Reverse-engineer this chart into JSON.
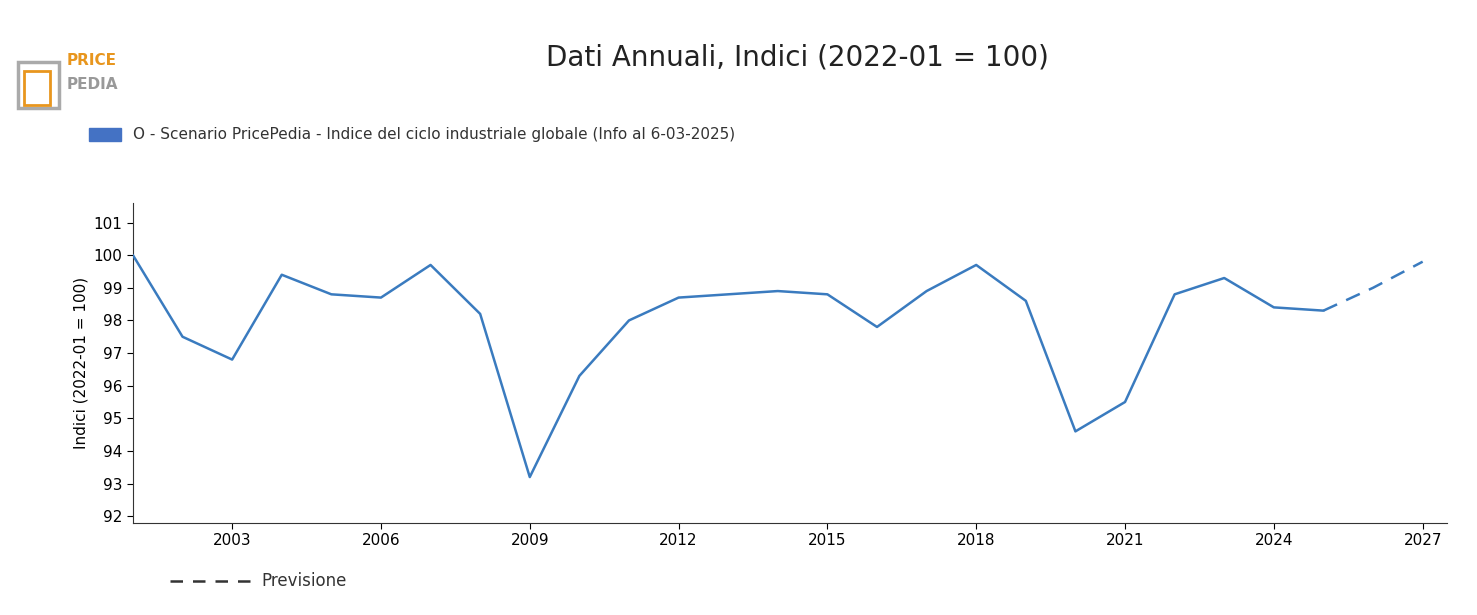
{
  "title": "Dati Annuali, Indici (2022-01 = 100)",
  "ylabel": "Indici (2022-01 = 100)",
  "legend_label": "O - Scenario PricePedia - Indice del ciclo industriale globale (Info al 6-03-2025)",
  "forecast_label": "Previsione",
  "line_color": "#3a7bbf",
  "xlim": [
    2001.0,
    2027.5
  ],
  "ylim": [
    91.8,
    101.6
  ],
  "yticks": [
    92,
    93,
    94,
    95,
    96,
    97,
    98,
    99,
    100,
    101
  ],
  "xticks": [
    2003,
    2006,
    2009,
    2012,
    2015,
    2018,
    2021,
    2024,
    2027
  ],
  "years_solid": [
    2001,
    2002,
    2003,
    2004,
    2005,
    2006,
    2007,
    2008,
    2009,
    2010,
    2011,
    2012,
    2013,
    2014,
    2015,
    2016,
    2017,
    2018,
    2019,
    2020,
    2021,
    2022,
    2023,
    2024,
    2025
  ],
  "values_solid": [
    100.0,
    97.5,
    96.8,
    99.4,
    98.8,
    98.7,
    99.7,
    98.2,
    93.2,
    96.3,
    98.0,
    98.7,
    98.8,
    98.9,
    98.8,
    97.8,
    98.9,
    99.7,
    98.6,
    94.6,
    95.5,
    98.8,
    99.3,
    98.4,
    98.3
  ],
  "years_dashed": [
    2025,
    2026,
    2027
  ],
  "values_dashed": [
    98.3,
    99.0,
    99.8
  ],
  "background_color": "#ffffff",
  "legend_color": "#4472c4",
  "logo_color_price": "#E8961E",
  "logo_color_pedia": "#999999",
  "logo_frame_color": "#aaaaaa",
  "title_fontsize": 20,
  "label_fontsize": 11,
  "tick_fontsize": 11,
  "legend_fontsize": 11,
  "forecast_fontsize": 12
}
